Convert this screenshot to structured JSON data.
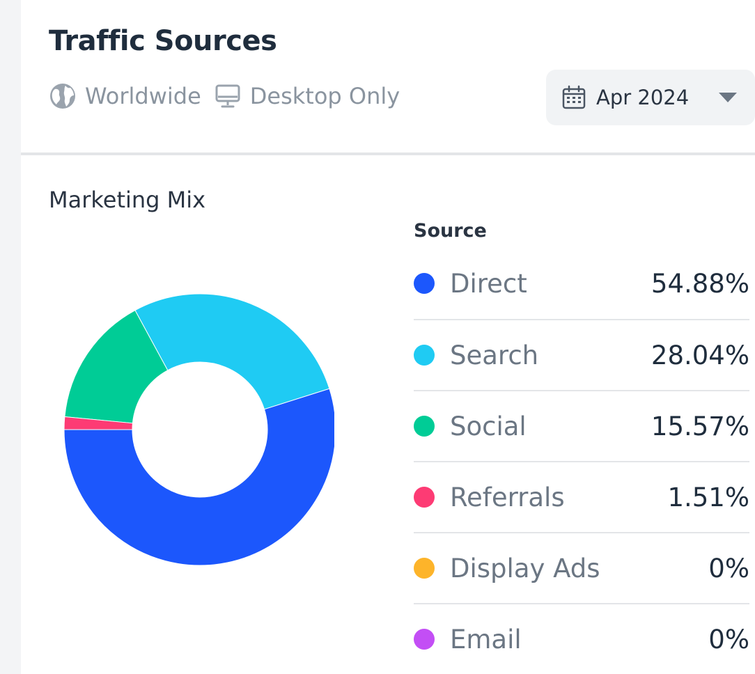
{
  "header": {
    "title": "Traffic Sources",
    "region": "Worldwide",
    "device": "Desktop Only",
    "date": "Apr 2024"
  },
  "icons": {
    "region": "globe-icon",
    "device": "monitor-icon",
    "date": "calendar-icon",
    "dropdown": "chevron-down-icon"
  },
  "chart_data": {
    "type": "pie",
    "title": "Marketing Mix",
    "legend_header": "Source",
    "legend_position": "right",
    "donut": true,
    "categories": [
      "Direct",
      "Search",
      "Social",
      "Referrals",
      "Display Ads",
      "Email"
    ],
    "values": [
      54.88,
      28.04,
      15.57,
      1.51,
      0,
      0
    ],
    "labels": [
      "54.88%",
      "28.04%",
      "15.57%",
      "1.51%",
      "0%",
      "0%"
    ],
    "colors": [
      "#1c57fc",
      "#1fcbf3",
      "#00cc96",
      "#fd3b74",
      "#fdb42a",
      "#c34ef5"
    ]
  }
}
